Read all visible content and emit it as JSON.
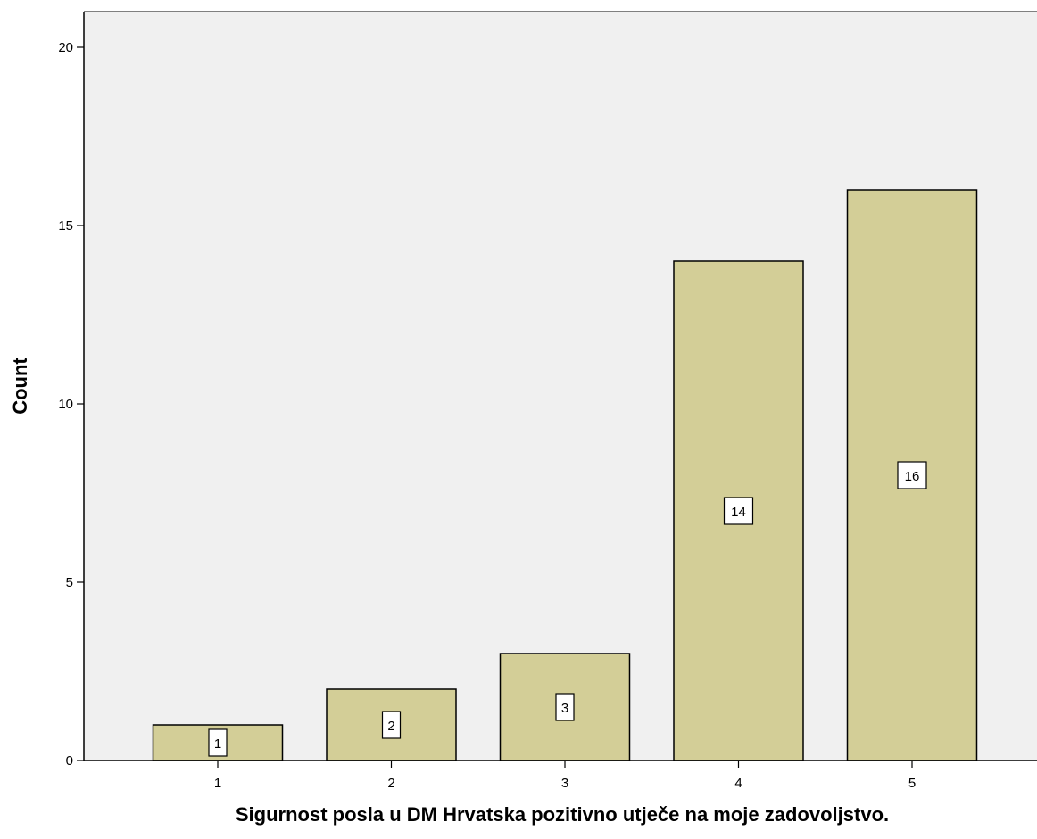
{
  "chart_data": {
    "type": "bar",
    "categories": [
      "1",
      "2",
      "3",
      "4",
      "5"
    ],
    "values": [
      1,
      2,
      3,
      14,
      16
    ],
    "data_labels": [
      "1",
      "2",
      "3",
      "14",
      "16"
    ],
    "xlabel": "Sigurnost posla u DM Hrvatska pozitivno utječe na moje zadovoljstvo.",
    "ylabel": "Count",
    "ylim": [
      0,
      21
    ],
    "yticks": [
      0,
      5,
      10,
      15,
      20
    ],
    "ytick_labels": [
      "0",
      "5",
      "10",
      "15",
      "20"
    ],
    "grid": false,
    "legend": "none",
    "colors": {
      "plot_background": "#f0f0f0",
      "bar_fill": "#d3ce97",
      "bar_stroke": "#000000",
      "label_box": "#ffffff"
    }
  }
}
